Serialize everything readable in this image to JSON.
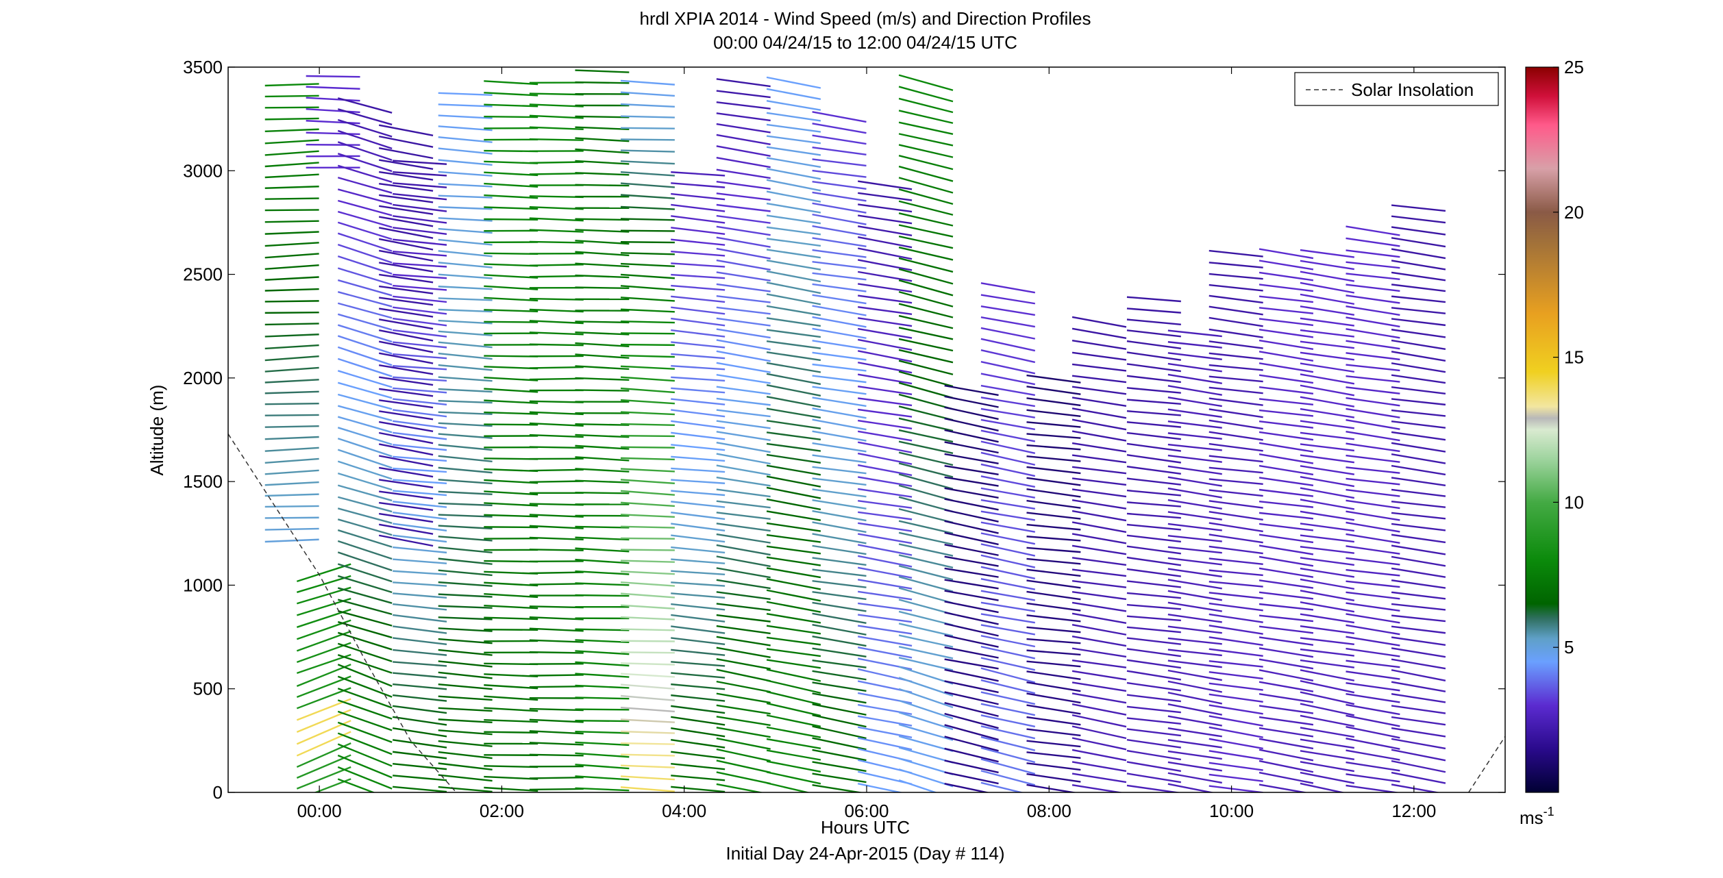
{
  "chart_data": {
    "type": "wind-barb-profile",
    "title_line1": "hrdl XPIA 2014 - Wind Speed (m/s) and Direction Profiles",
    "title_line2": "00:00 04/24/15 to 12:00 04/24/15  UTC",
    "xlabel": "Hours UTC",
    "xlabel2": "Initial Day 24-Apr-2015 (Day # 114)",
    "ylabel": "Altitude (m)",
    "xlim": [
      -1.0,
      13.0
    ],
    "ylim": [
      0,
      3500
    ],
    "x_ticks": [
      {
        "value": 0,
        "label": "00:00"
      },
      {
        "value": 2,
        "label": "02:00"
      },
      {
        "value": 4,
        "label": "04:00"
      },
      {
        "value": 6,
        "label": "06:00"
      },
      {
        "value": 8,
        "label": "08:00"
      },
      {
        "value": 10,
        "label": "10:00"
      },
      {
        "value": 12,
        "label": "12:00"
      }
    ],
    "y_ticks": [
      {
        "value": 0,
        "label": "0"
      },
      {
        "value": 500,
        "label": "500"
      },
      {
        "value": 1000,
        "label": "1000"
      },
      {
        "value": 1500,
        "label": "1500"
      },
      {
        "value": 2000,
        "label": "2000"
      },
      {
        "value": 2500,
        "label": "2500"
      },
      {
        "value": 3000,
        "label": "3000"
      },
      {
        "value": 3500,
        "label": "3500"
      }
    ],
    "grid": false,
    "legend": {
      "position": "top-right",
      "entries": [
        "Solar Insolation"
      ]
    },
    "colorbar": {
      "min": 0,
      "max": 25,
      "unit": "ms",
      "unit_exponent": "-1",
      "ticks": [
        {
          "value": 5,
          "label": "5"
        },
        {
          "value": 10,
          "label": "10"
        },
        {
          "value": 15,
          "label": "15"
        },
        {
          "value": 20,
          "label": "20"
        },
        {
          "value": 25,
          "label": "25"
        }
      ],
      "stops": [
        {
          "v": 0,
          "c": "#000033"
        },
        {
          "v": 1.5,
          "c": "#2a0a8c"
        },
        {
          "v": 3,
          "c": "#5b2bd0"
        },
        {
          "v": 4.5,
          "c": "#6aa0ff"
        },
        {
          "v": 5.3,
          "c": "#5fa0c8"
        },
        {
          "v": 6.0,
          "c": "#2f6f5f"
        },
        {
          "v": 6.5,
          "c": "#006400"
        },
        {
          "v": 8,
          "c": "#0b8a0b"
        },
        {
          "v": 10,
          "c": "#44aa44"
        },
        {
          "v": 11.5,
          "c": "#9fd49f"
        },
        {
          "v": 12.5,
          "c": "#d9ead0"
        },
        {
          "v": 12.9,
          "c": "#b8b8b8"
        },
        {
          "v": 13.3,
          "c": "#f2e6a0"
        },
        {
          "v": 14.5,
          "c": "#f0d020"
        },
        {
          "v": 16.5,
          "c": "#e8a020"
        },
        {
          "v": 19,
          "c": "#a0703a"
        },
        {
          "v": 20,
          "c": "#8a5a46"
        },
        {
          "v": 21.5,
          "c": "#d8a0a8"
        },
        {
          "v": 23,
          "c": "#ff5a8a"
        },
        {
          "v": 24,
          "c": "#d0103a"
        },
        {
          "v": 25,
          "c": "#8a0000"
        }
      ]
    },
    "solar_insolation": {
      "name": "Solar Insolation",
      "segments": [
        [
          [
            -1.0,
            1730
          ],
          [
            0.0,
            1050
          ],
          [
            0.5,
            640
          ],
          [
            1.0,
            250
          ],
          [
            1.5,
            0
          ]
        ],
        [
          [
            12.6,
            0
          ],
          [
            13.0,
            270
          ]
        ]
      ]
    },
    "profile_columns": [
      {
        "t": -0.3,
        "zmin": 1200,
        "zmax": 3450,
        "speed_top": 8,
        "speed_bottom": 5,
        "tilt": -0.15
      },
      {
        "t": 0.05,
        "zmin": 0,
        "zmax": 1100,
        "speed_top": 8,
        "speed_bottom": 9,
        "tilt": -1.2,
        "colors": [
          [
            200,
            450,
            14
          ]
        ]
      },
      {
        "t": 0.15,
        "zmin": 3000,
        "zmax": 3470,
        "speed_top": 3,
        "speed_bottom": 3,
        "tilt": 0.1
      },
      {
        "t": 0.5,
        "zmin": 0,
        "zmax": 3350,
        "speed_top": 2,
        "speed_bottom": 8,
        "tilt": 1.1
      },
      {
        "t": 0.95,
        "zmin": 1200,
        "zmax": 3200,
        "speed_top": 2,
        "speed_bottom": 2,
        "tilt": 0.6
      },
      {
        "t": 1.1,
        "zmin": 0,
        "zmax": 3050,
        "speed_top": 2,
        "speed_bottom": 7,
        "tilt": 0.35
      },
      {
        "t": 1.6,
        "zmin": 0,
        "zmax": 3400,
        "speed_top": 4.5,
        "speed_bottom": 7,
        "tilt": 0.25
      },
      {
        "t": 2.1,
        "zmin": 0,
        "zmax": 3460,
        "speed_top": 8,
        "speed_bottom": 7,
        "tilt": 0.1
      },
      {
        "t": 2.6,
        "zmin": 0,
        "zmax": 3470,
        "speed_top": 8,
        "speed_bottom": 7,
        "tilt": 0.05
      },
      {
        "t": 3.1,
        "zmin": 0,
        "zmax": 3480,
        "speed_top": 7,
        "speed_bottom": 8,
        "tilt": 0.12
      },
      {
        "t": 3.6,
        "zmin": 0,
        "zmax": 3470,
        "speed_top": 4.5,
        "speed_bottom": 14,
        "tilt": 0.15
      },
      {
        "t": 4.15,
        "zmin": 0,
        "zmax": 3000,
        "speed_top": 2.5,
        "speed_bottom": 7,
        "tilt": 0.35
      },
      {
        "t": 4.65,
        "zmin": 0,
        "zmax": 3450,
        "speed_top": 2,
        "speed_bottom": 8,
        "tilt": 0.55
      },
      {
        "t": 5.2,
        "zmin": 0,
        "zmax": 3460,
        "speed_top": 4.5,
        "speed_bottom": 8,
        "tilt": 0.6
      },
      {
        "t": 5.7,
        "zmin": 0,
        "zmax": 3300,
        "speed_top": 3,
        "speed_bottom": 7,
        "tilt": 0.55
      },
      {
        "t": 6.2,
        "zmin": 0,
        "zmax": 2950,
        "speed_top": 2,
        "speed_bottom": 4.5,
        "tilt": 0.6
      },
      {
        "t": 6.65,
        "zmin": 0,
        "zmax": 3470,
        "speed_top": 8,
        "speed_bottom": 4.5,
        "tilt": 0.9
      },
      {
        "t": 7.15,
        "zmin": 0,
        "zmax": 1950,
        "speed_top": 1,
        "speed_bottom": 1.5,
        "tilt": 0.7
      },
      {
        "t": 7.55,
        "zmin": 0,
        "zmax": 2450,
        "speed_top": 3,
        "speed_bottom": 4,
        "tilt": 0.7
      },
      {
        "t": 8.05,
        "zmin": 0,
        "zmax": 2000,
        "speed_top": 1,
        "speed_bottom": 1.5,
        "tilt": 0.4
      },
      {
        "t": 8.55,
        "zmin": 0,
        "zmax": 2300,
        "speed_top": 2,
        "speed_bottom": 2.5,
        "tilt": 0.55
      },
      {
        "t": 9.15,
        "zmin": 0,
        "zmax": 2400,
        "speed_top": 2,
        "speed_bottom": 2.5,
        "tilt": 0.4
      },
      {
        "t": 9.6,
        "zmin": 0,
        "zmax": 2250,
        "speed_top": 2.5,
        "speed_bottom": 2.5,
        "tilt": 0.5
      },
      {
        "t": 10.05,
        "zmin": 0,
        "zmax": 2600,
        "speed_top": 2,
        "speed_bottom": 3,
        "tilt": 0.45
      },
      {
        "t": 10.6,
        "zmin": 0,
        "zmax": 2600,
        "speed_top": 3,
        "speed_bottom": 2.5,
        "tilt": 0.5
      },
      {
        "t": 11.05,
        "zmin": 0,
        "zmax": 2650,
        "speed_top": 3,
        "speed_bottom": 2.5,
        "tilt": 0.55
      },
      {
        "t": 11.55,
        "zmin": 0,
        "zmax": 2750,
        "speed_top": 3,
        "speed_bottom": 2.5,
        "tilt": 0.5
      },
      {
        "t": 12.05,
        "zmin": 0,
        "zmax": 2850,
        "speed_top": 2,
        "speed_bottom": 2.5,
        "tilt": 0.5
      }
    ]
  }
}
